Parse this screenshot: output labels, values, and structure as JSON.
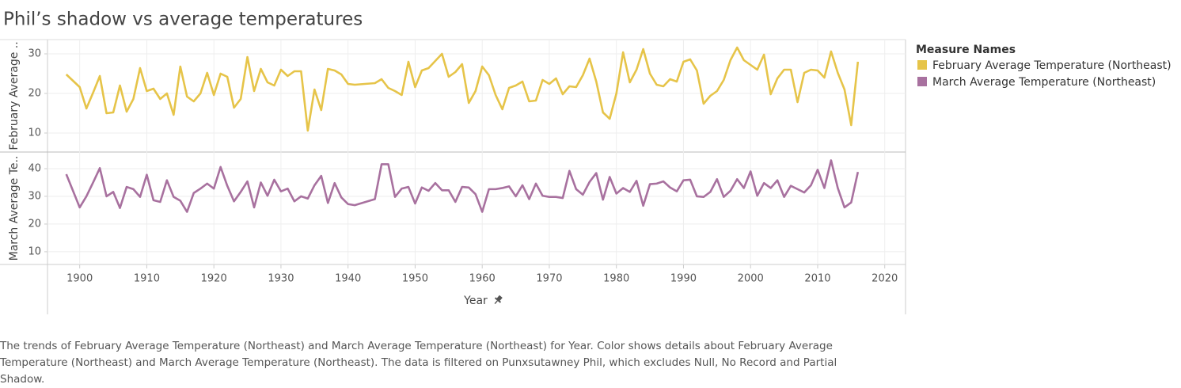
{
  "title": "Phil’s shadow vs average temperatures",
  "legend_title": "Measure Names",
  "caption": "The trends of February Average Temperature (Northeast) and March Average Temperature (Northeast) for Year.  Color shows details about February Average Temperature (Northeast) and March Average Temperature (Northeast). The data is filtered on Punxsutawney Phil, which excludes Null, No Record and Partial Shadow.",
  "chart_data": [
    {
      "type": "line",
      "ylabel": "February Average ..",
      "xlim": [
        1895.2,
        2023.1
      ],
      "ylim": [
        5.2,
        33.6
      ],
      "yticks": [
        10,
        20,
        30
      ],
      "grid": true,
      "x": [
        1898,
        1900,
        1901,
        1902,
        1903,
        1904,
        1905,
        1906,
        1907,
        1908,
        1909,
        1910,
        1911,
        1912,
        1913,
        1914,
        1915,
        1916,
        1917,
        1918,
        1919,
        1920,
        1921,
        1922,
        1923,
        1924,
        1925,
        1926,
        1927,
        1928,
        1929,
        1930,
        1931,
        1932,
        1933,
        1934,
        1935,
        1936,
        1937,
        1938,
        1939,
        1940,
        1941,
        1944,
        1945,
        1946,
        1947,
        1948,
        1949,
        1950,
        1951,
        1952,
        1953,
        1954,
        1955,
        1956,
        1957,
        1958,
        1959,
        1960,
        1961,
        1962,
        1963,
        1964,
        1965,
        1966,
        1967,
        1968,
        1969,
        1970,
        1971,
        1972,
        1973,
        1974,
        1975,
        1976,
        1977,
        1978,
        1979,
        1980,
        1981,
        1982,
        1983,
        1984,
        1985,
        1986,
        1987,
        1988,
        1989,
        1990,
        1991,
        1992,
        1993,
        1994,
        1995,
        1996,
        1997,
        1998,
        1999,
        2000,
        2001,
        2002,
        2003,
        2004,
        2005,
        2006,
        2007,
        2008,
        2009,
        2010,
        2011,
        2012,
        2013,
        2014,
        2015,
        2016
      ],
      "series": [
        {
          "name": "February Average Temperature (Northeast)",
          "color": "#e6c449",
          "values": [
            24.8,
            21.6,
            16.2,
            20.2,
            24.4,
            15,
            15.2,
            22,
            15.4,
            18.6,
            26.4,
            20.6,
            21.2,
            18.6,
            20,
            14.6,
            26.8,
            19.2,
            18,
            20,
            25.2,
            19.6,
            25,
            24.2,
            16.4,
            18.6,
            29.2,
            20.6,
            26.2,
            22.8,
            22,
            26,
            24.4,
            25.6,
            25.6,
            10.6,
            21,
            15.8,
            26.2,
            25.8,
            24.8,
            22.4,
            22.2,
            22.6,
            23.6,
            21.4,
            20.6,
            19.6,
            28,
            21.6,
            25.8,
            26.4,
            28.2,
            30,
            24.2,
            25.4,
            27.4,
            17.6,
            20.6,
            26.8,
            24.6,
            19.6,
            16,
            21.4,
            22,
            23,
            18,
            18.2,
            23.4,
            22.4,
            23.8,
            19.8,
            21.8,
            21.6,
            24.6,
            28.8,
            23,
            15.2,
            13.6,
            20,
            30.4,
            22.8,
            26,
            31.2,
            25,
            22.2,
            21.8,
            23.6,
            23,
            28,
            28.6,
            25.8,
            17.4,
            19.4,
            20.6,
            23.4,
            28.4,
            31.6,
            28.4,
            27.2,
            26,
            29.8,
            19.8,
            23.8,
            26,
            26,
            17.8,
            25.2,
            26,
            25.8,
            24,
            30.6,
            25.2,
            21,
            12,
            28
          ]
        }
      ]
    },
    {
      "type": "line",
      "ylabel": "March Average Te..",
      "xlabel": "Year",
      "xlim": [
        1895.2,
        2023.1
      ],
      "xticks": [
        1900,
        1910,
        1920,
        1930,
        1940,
        1950,
        1960,
        1970,
        1980,
        1990,
        2000,
        2010,
        2020
      ],
      "ylim": [
        5.4,
        46
      ],
      "yticks": [
        10,
        20,
        30,
        40
      ],
      "grid": true,
      "x": [
        1898,
        1900,
        1901,
        1902,
        1903,
        1904,
        1905,
        1906,
        1907,
        1908,
        1909,
        1910,
        1911,
        1912,
        1913,
        1914,
        1915,
        1916,
        1917,
        1918,
        1919,
        1920,
        1921,
        1922,
        1923,
        1924,
        1925,
        1926,
        1927,
        1928,
        1929,
        1930,
        1931,
        1932,
        1933,
        1934,
        1935,
        1936,
        1937,
        1938,
        1939,
        1940,
        1941,
        1944,
        1945,
        1946,
        1947,
        1948,
        1949,
        1950,
        1951,
        1952,
        1953,
        1954,
        1955,
        1956,
        1957,
        1958,
        1959,
        1960,
        1961,
        1962,
        1963,
        1964,
        1965,
        1966,
        1967,
        1968,
        1969,
        1970,
        1971,
        1972,
        1973,
        1974,
        1975,
        1976,
        1977,
        1978,
        1979,
        1980,
        1981,
        1982,
        1983,
        1984,
        1985,
        1986,
        1987,
        1988,
        1989,
        1990,
        1991,
        1992,
        1993,
        1994,
        1995,
        1996,
        1997,
        1998,
        1999,
        2000,
        2001,
        2002,
        2003,
        2004,
        2005,
        2006,
        2007,
        2008,
        2009,
        2010,
        2011,
        2012,
        2013,
        2014,
        2015,
        2016
      ],
      "series": [
        {
          "name": "March Average Temperature (Northeast)",
          "color": "#a8719f",
          "values": [
            38,
            26,
            30,
            35,
            40.2,
            30,
            31.6,
            25.8,
            33.4,
            32.6,
            29.8,
            37.8,
            28.6,
            28,
            35.8,
            29.8,
            28.4,
            24.4,
            31.2,
            32.8,
            34.6,
            32.8,
            40.6,
            33.8,
            28.2,
            31.6,
            35.4,
            26,
            35,
            30.2,
            36,
            31.8,
            32.8,
            28.2,
            30,
            29.2,
            34,
            37.4,
            27.6,
            34.8,
            29.6,
            27.2,
            26.8,
            29,
            41.6,
            41.6,
            29.8,
            32.8,
            33.4,
            27.4,
            33.2,
            32,
            34.8,
            32.2,
            32.2,
            28,
            33.4,
            33.2,
            30.8,
            24.4,
            32.6,
            32.6,
            33,
            33.6,
            30,
            34,
            29,
            34.6,
            30.2,
            29.8,
            29.8,
            29.4,
            39.2,
            32.6,
            30.6,
            35.2,
            38.4,
            28.8,
            37,
            31,
            33,
            31.6,
            35.6,
            26.6,
            34.4,
            34.6,
            35.4,
            33.2,
            31.8,
            35.8,
            36,
            30,
            29.8,
            31.6,
            36.2,
            29.8,
            32,
            36.2,
            33,
            39,
            30.2,
            34.8,
            33,
            35.8,
            29.8,
            33.8,
            32.6,
            31.4,
            34,
            39.6,
            33,
            43,
            33,
            26,
            27.8,
            38.8
          ]
        }
      ]
    }
  ]
}
